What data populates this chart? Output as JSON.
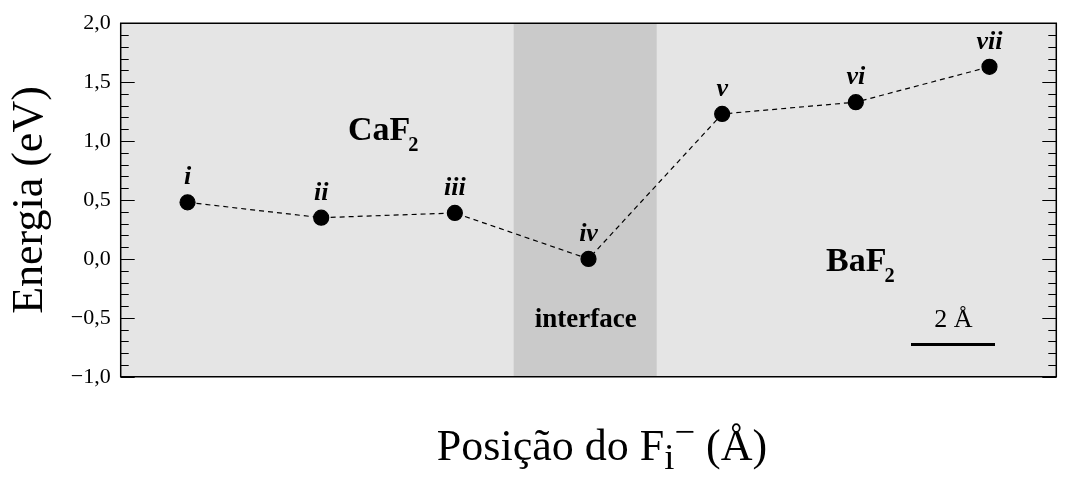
{
  "chart_data": {
    "type": "line",
    "xlabel": "Posição do F$_{i}$$^{−}$ (Å)",
    "ylabel": "Energia (eV)",
    "categories": [
      null,
      null,
      null,
      null,
      null,
      null,
      null
    ],
    "values": [
      0.48,
      0.35,
      0.39,
      0.0,
      1.23,
      1.33,
      1.63
    ],
    "value_labels": [
      "i",
      "ii",
      "iii",
      "iv",
      "v",
      "vi",
      "vii"
    ],
    "color": "#000000",
    "marker": "circle",
    "line_style": "dashed",
    "ylim": [
      -1.0,
      2.0
    ],
    "yticks": [
      {
        "value": -1.0,
        "label": "−1,0"
      },
      {
        "value": -0.9,
        "label": null
      },
      {
        "value": -0.8,
        "label": null
      },
      {
        "value": -0.7,
        "label": null
      },
      {
        "value": -0.6,
        "label": null
      },
      {
        "value": -0.5,
        "label": "−0,5"
      },
      {
        "value": -0.4,
        "label": null
      },
      {
        "value": -0.3,
        "label": null
      },
      {
        "value": -0.2,
        "label": null
      },
      {
        "value": -0.1,
        "label": null
      },
      {
        "value": 0.0,
        "label": "0,0"
      },
      {
        "value": 0.1,
        "label": null
      },
      {
        "value": 0.2,
        "label": null
      },
      {
        "value": 0.3,
        "label": null
      },
      {
        "value": 0.4,
        "label": null
      },
      {
        "value": 0.5,
        "label": "0,5"
      },
      {
        "value": 0.6,
        "label": null
      },
      {
        "value": 0.7,
        "label": null
      },
      {
        "value": 0.8,
        "label": null
      },
      {
        "value": 0.9,
        "label": null
      },
      {
        "value": 1.0,
        "label": "1,0"
      },
      {
        "value": 1.1,
        "label": null
      },
      {
        "value": 1.2,
        "label": null
      },
      {
        "value": 1.3,
        "label": null
      },
      {
        "value": 1.4,
        "label": null
      },
      {
        "value": 1.5,
        "label": "1,5"
      },
      {
        "value": 1.6,
        "label": null
      },
      {
        "value": 1.7,
        "label": null
      },
      {
        "value": 1.8,
        "label": null
      },
      {
        "value": 1.9,
        "label": null
      },
      {
        "value": 2.0,
        "label": "2,0"
      }
    ],
    "annotations": [
      "CaF₂",
      "BaF₂",
      "2 Å",
      "interface"
    ],
    "tick_labels": "y",
    "legend": false
  }
}
